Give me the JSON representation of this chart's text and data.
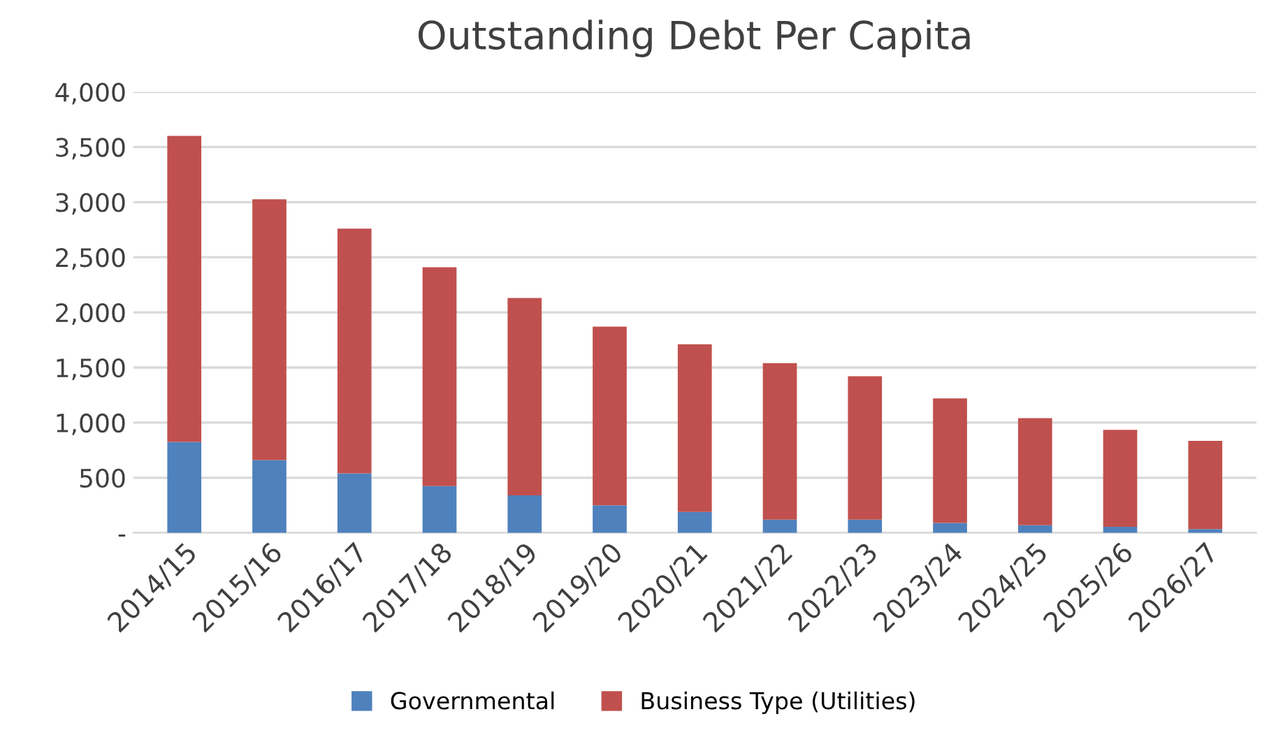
{
  "chart_data": {
    "type": "bar",
    "title": "Outstanding Debt Per Capita",
    "stacked": true,
    "categories": [
      "2014/15",
      "2015/16",
      "2016/17",
      "2017/18",
      "2018/19",
      "2019/20",
      "2020/21",
      "2021/22",
      "2022/23",
      "2023/24",
      "2024/25",
      "2025/26",
      "2026/27"
    ],
    "series": [
      {
        "name": "Governmental",
        "color": "#4f81bd",
        "values": [
          825,
          660,
          540,
          425,
          340,
          250,
          190,
          120,
          120,
          90,
          70,
          55,
          35
        ]
      },
      {
        "name": "Business Type (Utilities)",
        "color": "#c0504d",
        "values": [
          2775,
          2365,
          2220,
          1985,
          1790,
          1620,
          1520,
          1420,
          1300,
          1130,
          970,
          880,
          800
        ]
      }
    ],
    "ylim": [
      0,
      4000
    ],
    "yticks": [
      {
        "value": 0,
        "label": "-"
      },
      {
        "value": 500,
        "label": "500"
      },
      {
        "value": 1000,
        "label": "1,000"
      },
      {
        "value": 1500,
        "label": "1,500"
      },
      {
        "value": 2000,
        "label": "2,000"
      },
      {
        "value": 2500,
        "label": "2,500"
      },
      {
        "value": 3000,
        "label": "3,000"
      },
      {
        "value": 3500,
        "label": "3,500"
      },
      {
        "value": 4000,
        "label": "4,000"
      }
    ],
    "grid": "y",
    "legend": "bottom"
  }
}
